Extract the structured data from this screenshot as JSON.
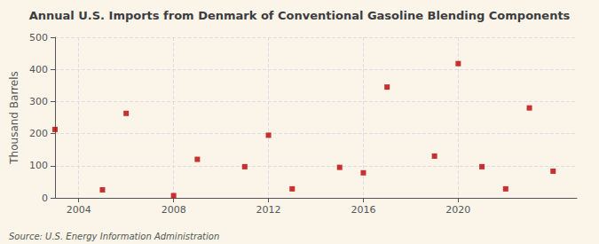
{
  "chart_data": {
    "type": "scatter",
    "title": "Annual U.S. Imports from Denmark of Conventional Gasoline Blending Components",
    "ylabel": "Thousand Barrels",
    "annotations": [
      "Source: U.S. Energy Information Administration"
    ],
    "x": [
      2003,
      2005,
      2006,
      2008,
      2009,
      2011,
      2012,
      2013,
      2015,
      2016,
      2017,
      2019,
      2020,
      2021,
      2022,
      2023,
      2024
    ],
    "values": [
      213,
      25,
      263,
      7,
      120,
      97,
      195,
      28,
      95,
      78,
      345,
      130,
      418,
      97,
      28,
      280,
      83
    ],
    "color": "#bb0000",
    "marker": "square",
    "xlim": [
      2003,
      2025
    ],
    "xticks": [
      2004,
      2008,
      2012,
      2016,
      2020
    ],
    "ylim": [
      0,
      500
    ],
    "yticks": [
      0,
      100,
      200,
      300,
      400,
      500
    ],
    "grid": true
  }
}
